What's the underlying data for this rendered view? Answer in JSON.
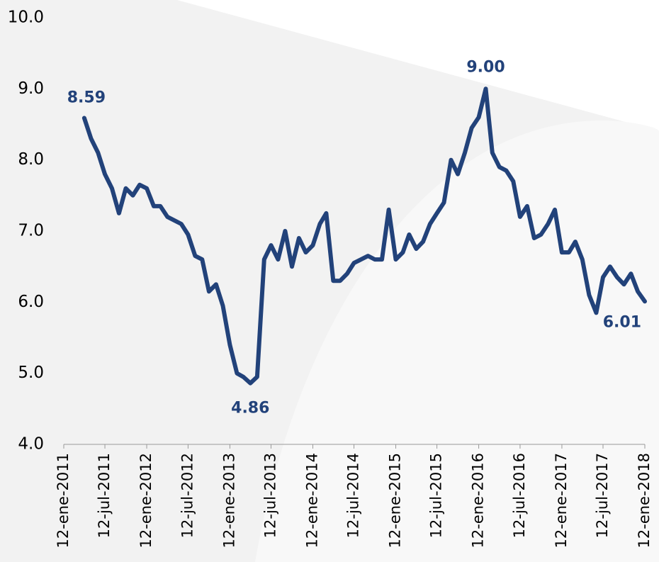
{
  "chart_data": {
    "type": "line",
    "series": [
      {
        "color": "#22427a",
        "x": [
          "2011-04-12",
          "2011-05-12",
          "2011-06-12",
          "2011-07-12",
          "2011-08-12",
          "2011-09-12",
          "2011-10-12",
          "2011-11-12",
          "2011-12-12",
          "2012-01-12",
          "2012-02-12",
          "2012-03-12",
          "2012-04-12",
          "2012-05-12",
          "2012-06-12",
          "2012-07-12",
          "2012-08-12",
          "2012-09-12",
          "2012-10-12",
          "2012-11-12",
          "2012-12-12",
          "2013-01-12",
          "2013-02-12",
          "2013-03-12",
          "2013-04-12",
          "2013-05-12",
          "2013-06-12",
          "2013-07-12",
          "2013-08-12",
          "2013-09-12",
          "2013-10-12",
          "2013-11-12",
          "2013-12-12",
          "2014-01-12",
          "2014-02-12",
          "2014-03-12",
          "2014-04-12",
          "2014-05-12",
          "2014-06-12",
          "2014-07-12",
          "2014-08-12",
          "2014-09-12",
          "2014-10-12",
          "2014-11-12",
          "2014-12-12",
          "2015-01-12",
          "2015-02-12",
          "2015-03-12",
          "2015-04-12",
          "2015-05-12",
          "2015-06-12",
          "2015-07-12",
          "2015-08-12",
          "2015-09-12",
          "2015-10-12",
          "2015-11-12",
          "2015-12-12",
          "2016-01-12",
          "2016-02-12",
          "2016-03-12",
          "2016-04-12",
          "2016-05-12",
          "2016-06-12",
          "2016-07-12",
          "2016-08-12",
          "2016-09-12",
          "2016-10-12",
          "2016-11-12",
          "2016-12-12",
          "2017-01-12",
          "2017-02-12",
          "2017-03-12",
          "2017-04-12",
          "2017-05-12",
          "2017-06-12",
          "2017-07-12",
          "2017-08-12",
          "2017-09-12",
          "2017-10-12",
          "2017-11-12",
          "2017-12-12",
          "2018-01-12"
        ],
        "values": [
          8.59,
          8.3,
          8.1,
          7.8,
          7.6,
          7.25,
          7.6,
          7.5,
          7.65,
          7.6,
          7.35,
          7.35,
          7.2,
          7.15,
          7.1,
          6.95,
          6.65,
          6.6,
          6.15,
          6.25,
          5.95,
          5.4,
          5.0,
          4.95,
          4.86,
          4.95,
          6.6,
          6.8,
          6.6,
          7.0,
          6.5,
          6.9,
          6.7,
          6.8,
          7.1,
          7.25,
          6.3,
          6.3,
          6.4,
          6.55,
          6.6,
          6.65,
          6.6,
          6.6,
          7.3,
          6.6,
          6.7,
          6.95,
          6.75,
          6.85,
          7.1,
          7.25,
          7.4,
          8.0,
          7.8,
          8.1,
          8.45,
          8.6,
          9.0,
          8.1,
          7.9,
          7.85,
          7.7,
          7.2,
          7.35,
          6.9,
          6.95,
          7.1,
          7.3,
          6.7,
          6.7,
          6.85,
          6.6,
          6.1,
          5.85,
          6.35,
          6.5,
          6.35,
          6.25,
          6.4,
          6.15,
          6.01
        ]
      }
    ],
    "labels": [
      {
        "x": "2011-04-12",
        "value": 8.59,
        "label": "8.59"
      },
      {
        "x": "2013-04-12",
        "value": 4.86,
        "label": "4.86"
      },
      {
        "x": "2016-02-12",
        "value": 9.0,
        "label": "9.00"
      },
      {
        "x": "2018-01-12",
        "value": 6.01,
        "label": "6.01"
      }
    ],
    "xlim": [
      "2011-01-12",
      "2018-01-12"
    ],
    "xticks": [
      {
        "value": "2011-01-12",
        "label": "12-ene-2011"
      },
      {
        "value": "2011-07-12",
        "label": "12-jul-2011"
      },
      {
        "value": "2012-01-12",
        "label": "12-ene-2012"
      },
      {
        "value": "2012-07-12",
        "label": "12-jul-2012"
      },
      {
        "value": "2013-01-12",
        "label": "12-ene-2013"
      },
      {
        "value": "2013-07-12",
        "label": "12-jul-2013"
      },
      {
        "value": "2014-01-12",
        "label": "12-ene-2014"
      },
      {
        "value": "2014-07-12",
        "label": "12-jul-2014"
      },
      {
        "value": "2015-01-12",
        "label": "12-ene-2015"
      },
      {
        "value": "2015-07-12",
        "label": "12-jul-2015"
      },
      {
        "value": "2016-01-12",
        "label": "12-ene-2016"
      },
      {
        "value": "2016-07-12",
        "label": "12-jul-2016"
      },
      {
        "value": "2017-01-12",
        "label": "12-ene-2017"
      },
      {
        "value": "2017-07-12",
        "label": "12-jul-2017"
      },
      {
        "value": "2018-01-12",
        "label": "12-ene-2018"
      }
    ],
    "ylim": [
      4,
      10
    ],
    "yticks": [
      {
        "value": 4,
        "label": "4.0"
      },
      {
        "value": 5,
        "label": "5.0"
      },
      {
        "value": 6,
        "label": "6.0"
      },
      {
        "value": 7,
        "label": "7.0"
      },
      {
        "value": 8,
        "label": "8.0"
      },
      {
        "value": 9,
        "label": "9.0"
      },
      {
        "value": 10,
        "label": "10.0"
      }
    ]
  }
}
